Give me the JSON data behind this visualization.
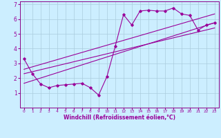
{
  "xlabel": "Windchill (Refroidissement éolien,°C)",
  "bg_color": "#cceeff",
  "grid_color": "#aaccdd",
  "line_color": "#990099",
  "spine_color": "#880088",
  "xlim": [
    -0.5,
    23.5
  ],
  "ylim": [
    0,
    7.2
  ],
  "xticks": [
    0,
    1,
    2,
    3,
    4,
    5,
    6,
    7,
    8,
    9,
    10,
    11,
    12,
    13,
    14,
    15,
    16,
    17,
    18,
    19,
    20,
    21,
    22,
    23
  ],
  "yticks": [
    1,
    2,
    3,
    4,
    5,
    6,
    7
  ],
  "series1_x": [
    0,
    1,
    2,
    3,
    4,
    5,
    6,
    7,
    8,
    9,
    10,
    11,
    12,
    13,
    14,
    15,
    16,
    17,
    18,
    19,
    20,
    21,
    22,
    23
  ],
  "series1_y": [
    3.3,
    2.3,
    1.6,
    1.35,
    1.5,
    1.55,
    1.6,
    1.65,
    1.35,
    0.85,
    2.1,
    4.15,
    6.3,
    5.6,
    6.55,
    6.6,
    6.55,
    6.55,
    6.75,
    6.35,
    6.25,
    5.25,
    5.6,
    5.75
  ],
  "regline1_x": [
    0,
    23
  ],
  "regline1_y": [
    2.3,
    5.4
  ],
  "regline2_x": [
    0,
    23
  ],
  "regline2_y": [
    1.65,
    5.75
  ],
  "regline3_x": [
    0,
    23
  ],
  "regline3_y": [
    2.6,
    6.35
  ]
}
